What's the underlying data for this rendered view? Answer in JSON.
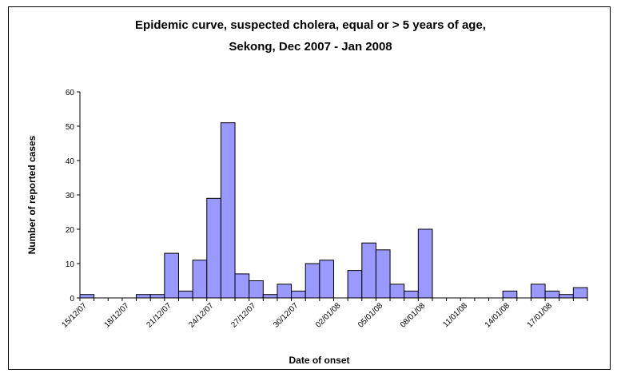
{
  "chart_data": {
    "type": "bar",
    "title_line1": "Epidemic curve, suspected cholera, equal or > 5 years of age,",
    "title_line2": "Sekong, Dec 2007 - Jan 2008",
    "xlabel": "Date of onset",
    "ylabel": "Number of reported cases",
    "ylim": [
      0,
      60
    ],
    "yticks": [
      0,
      10,
      20,
      30,
      40,
      50,
      60
    ],
    "grid": false,
    "legend": "none",
    "bar_color": "#9999ff",
    "bar_edge_color": "#000000",
    "xtick_labels": [
      "15/12/07",
      "18/12/07",
      "21/12/07",
      "24/12/07",
      "27/12/07",
      "30/12/07",
      "02/01/08",
      "05/01/08",
      "08/01/08",
      "11/01/08",
      "14/01/08",
      "17/01/08"
    ],
    "categories": [
      "15/12/07",
      "16/12/07",
      "17/12/07",
      "18/12/07",
      "19/12/07",
      "20/12/07",
      "21/12/07",
      "22/12/07",
      "23/12/07",
      "24/12/07",
      "25/12/07",
      "26/12/07",
      "27/12/07",
      "28/12/07",
      "29/12/07",
      "30/12/07",
      "31/12/07",
      "01/01/08",
      "02/01/08",
      "03/01/08",
      "04/01/08",
      "05/01/08",
      "06/01/08",
      "07/01/08",
      "08/01/08",
      "09/01/08",
      "10/01/08",
      "11/01/08",
      "12/01/08",
      "13/01/08",
      "14/01/08",
      "15/01/08",
      "16/01/08",
      "17/01/08",
      "18/01/08",
      "19/01/08"
    ],
    "values": [
      1,
      0,
      0,
      0,
      1,
      1,
      13,
      2,
      11,
      29,
      51,
      7,
      5,
      1,
      4,
      2,
      10,
      11,
      0,
      8,
      16,
      14,
      4,
      2,
      20,
      0,
      0,
      0,
      0,
      0,
      2,
      0,
      4,
      2,
      1,
      3
    ]
  }
}
